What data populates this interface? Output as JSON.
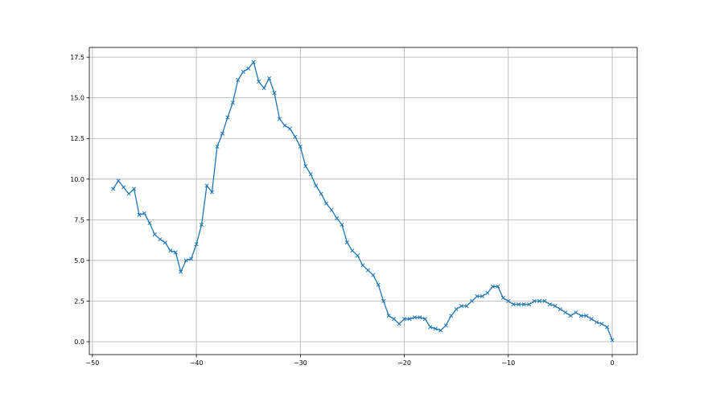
{
  "chart_data": {
    "type": "line",
    "title": "",
    "xlabel": "",
    "ylabel": "",
    "xlim": [
      -50.3,
      2.4
    ],
    "ylim": [
      -0.79,
      18.1
    ],
    "grid": true,
    "marker": "x",
    "color": "#1f77b4",
    "xticks": [
      -50,
      -40,
      -30,
      -20,
      -10,
      0
    ],
    "xtick_labels": [
      "−50",
      "−40",
      "−30",
      "−20",
      "−10",
      "0"
    ],
    "yticks": [
      0,
      2.5,
      5,
      7.5,
      10,
      12.5,
      15,
      17.5
    ],
    "ytick_labels": [
      "0.0",
      "2.5",
      "5.0",
      "7.5",
      "10.0",
      "12.5",
      "15.0",
      "17.5"
    ],
    "series": [
      {
        "x": [
          -48,
          -47.5,
          -47,
          -46.5,
          -46,
          -45.5,
          -45,
          -44.5,
          -44,
          -43.5,
          -43,
          -42.5,
          -42,
          -41.5,
          -41,
          -40.5,
          -40,
          -39.5,
          -39,
          -38.5,
          -38,
          -37.5,
          -37,
          -36.5,
          -36,
          -35.5,
          -35,
          -34.5,
          -34,
          -33.5,
          -33,
          -32.5,
          -32,
          -31.5,
          -31,
          -30.5,
          -30,
          -29.5,
          -29,
          -28.5,
          -28,
          -27.5,
          -27,
          -26.5,
          -26,
          -25.5,
          -25,
          -24.5,
          -24,
          -23.5,
          -23,
          -22.5,
          -22,
          -21.5,
          -21,
          -20.5,
          -20,
          -19.5,
          -19,
          -18.5,
          -18,
          -17.5,
          -17,
          -16.5,
          -16,
          -15.5,
          -15,
          -14.5,
          -14,
          -13.5,
          -13,
          -12.5,
          -12,
          -11.5,
          -11,
          -10.5,
          -10,
          -9.5,
          -9,
          -8.5,
          -8,
          -7.5,
          -7,
          -6.5,
          -6,
          -5.5,
          -5,
          -4.5,
          -4,
          -3.5,
          -3,
          -2.5,
          -2,
          -1.5,
          -1,
          -0.5,
          0
        ],
        "y": [
          9.4,
          9.9,
          9.5,
          9.1,
          9.4,
          7.8,
          7.9,
          7.3,
          6.6,
          6.3,
          6.1,
          5.6,
          5.5,
          4.3,
          5.0,
          5.1,
          6.0,
          7.2,
          9.6,
          9.2,
          12.0,
          12.8,
          13.8,
          14.7,
          16.1,
          16.6,
          16.8,
          17.2,
          16.0,
          15.6,
          16.2,
          15.3,
          13.7,
          13.3,
          13.1,
          12.6,
          12.0,
          10.8,
          10.3,
          9.6,
          9.1,
          8.5,
          8.1,
          7.6,
          7.2,
          6.1,
          5.6,
          5.3,
          4.7,
          4.4,
          4.1,
          3.5,
          2.5,
          1.6,
          1.4,
          1.1,
          1.4,
          1.4,
          1.5,
          1.5,
          1.4,
          0.9,
          0.8,
          0.7,
          1.0,
          1.6,
          2.0,
          2.2,
          2.2,
          2.5,
          2.8,
          2.8,
          3.0,
          3.4,
          3.4,
          2.7,
          2.5,
          2.3,
          2.3,
          2.3,
          2.3,
          2.5,
          2.5,
          2.5,
          2.3,
          2.2,
          2.0,
          1.8,
          1.6,
          1.8,
          1.6,
          1.6,
          1.4,
          1.2,
          1.1,
          0.9,
          0.1
        ]
      }
    ]
  }
}
